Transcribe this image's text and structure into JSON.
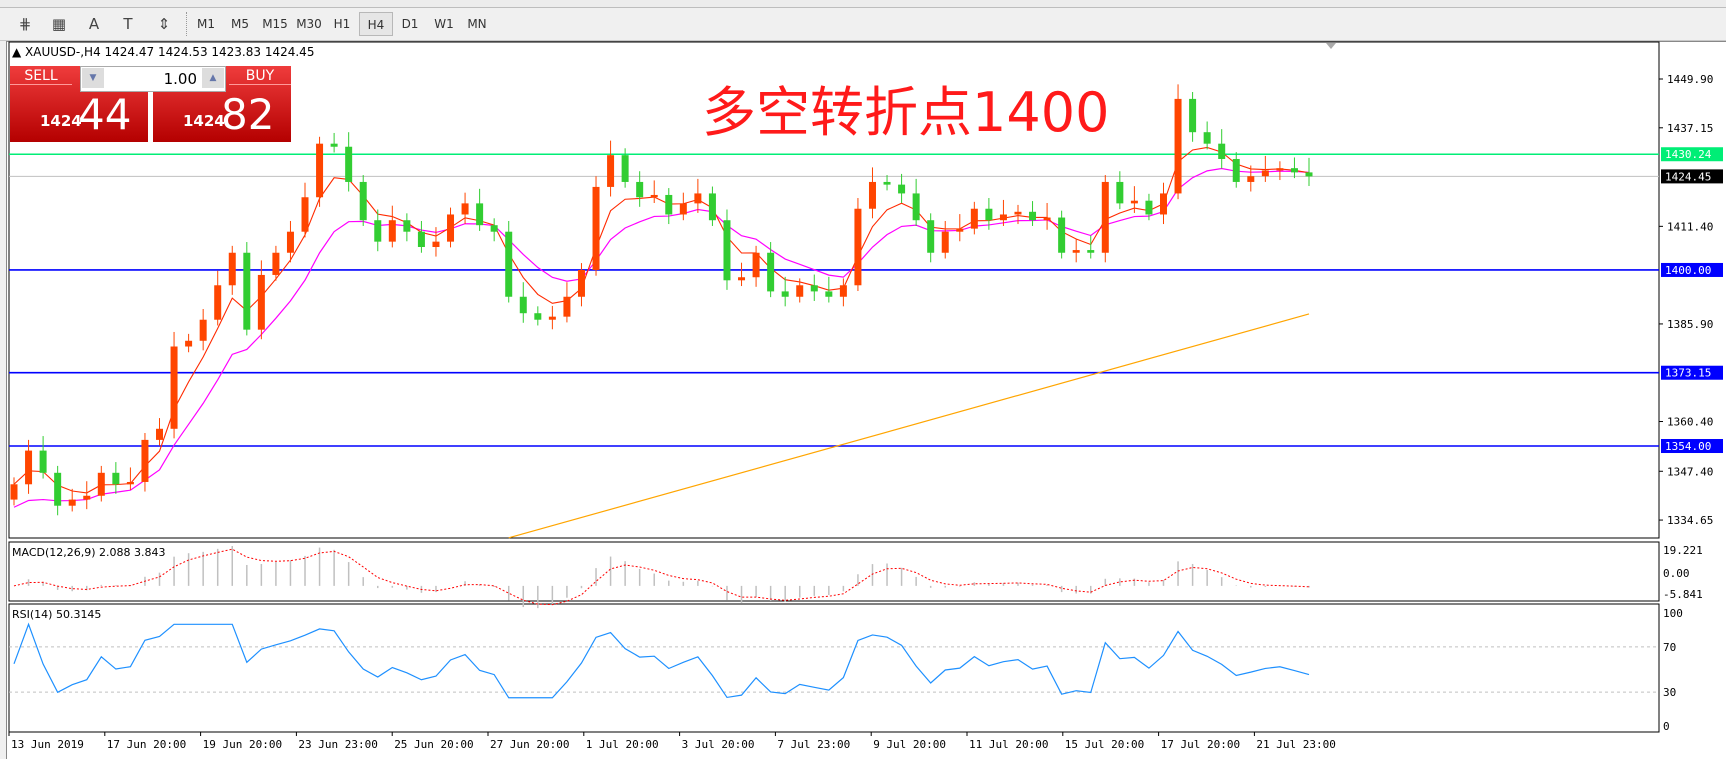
{
  "toolbar": {
    "icons": [
      "fibonacci-expansion-icon",
      "fibonacci-fan-icon",
      "text-icon",
      "text-label-icon",
      "arrows-icon"
    ],
    "icon_glyphs": [
      "⋕",
      "▦",
      "A",
      "T",
      "⇕"
    ],
    "timeframes": [
      "M1",
      "M5",
      "M15",
      "M30",
      "H1",
      "H4",
      "D1",
      "W1",
      "MN"
    ],
    "selected_timeframe": "H4"
  },
  "chart": {
    "info": "XAUUSD-,H4  1424.47 1424.53 1423.83 1424.45",
    "title_annotation": "多空转折点1400"
  },
  "trade_panel": {
    "sell_label": "SELL",
    "buy_label": "BUY",
    "lot": "1.00",
    "sell_small": "1424",
    "sell_big": "44",
    "buy_small": "1424",
    "buy_big": "82",
    "button_color": "#d01c1c"
  },
  "chart_data": {
    "type": "candlestick",
    "symbol": "XAUUSD-",
    "timeframe": "H4",
    "ylim": [
      1330,
      1458
    ],
    "price_ticks": [
      "1449.90",
      "1437.15",
      "1411.40",
      "1385.90",
      "1360.40",
      "1347.40",
      "1334.65"
    ],
    "x_tick_labels": [
      "13 Jun 2019",
      "17 Jun 20:00",
      "19 Jun 20:00",
      "23 Jun 23:00",
      "25 Jun 20:00",
      "27 Jun 20:00",
      "1 Jul 20:00",
      "3 Jul 20:00",
      "7 Jul 23:00",
      "9 Jul 20:00",
      "11 Jul 20:00",
      "15 Jul 20:00",
      "17 Jul 20:00",
      "21 Jul 23:00"
    ],
    "closes": [
      1344,
      1352.8,
      1347,
      1338.4,
      1340,
      1341,
      1347,
      1344,
      1344.6,
      1355.6,
      1358.5,
      1380,
      1381.5,
      1387,
      1396,
      1404.5,
      1384.4,
      1398.7,
      1404.5,
      1410,
      1419,
      1433,
      1432.2,
      1423,
      1413,
      1407.4,
      1413,
      1410,
      1406,
      1407.4,
      1414.5,
      1417.4,
      1411.7,
      1410,
      1393,
      1388.7,
      1387,
      1387.8,
      1393,
      1400,
      1421.7,
      1430,
      1423,
      1419,
      1419.6,
      1414.5,
      1417.4,
      1420,
      1413,
      1397.3,
      1398.1,
      1404.5,
      1394.4,
      1393,
      1396,
      1394.4,
      1393,
      1396,
      1416,
      1423,
      1422.3,
      1420,
      1413,
      1404.5,
      1410,
      1410.8,
      1416,
      1413,
      1414.5,
      1415.2,
      1413,
      1413.7,
      1404.5,
      1405.2,
      1404.5,
      1423,
      1417.4,
      1418.1,
      1414.5,
      1420,
      1444.7,
      1436,
      1433,
      1429,
      1423,
      1424.5,
      1426,
      1426.6,
      1425.5,
      1424.45
    ],
    "first_open": 1340,
    "bull_color": "#ff4500",
    "bear_color": "#32cd32",
    "slow_ma": {
      "color": "#ffa500",
      "points": [
        [
          34,
          1330
        ],
        [
          89,
          1388.5
        ]
      ]
    },
    "fast_ma_color": "#ff2a00",
    "mid_ma_color": "#ff00ff",
    "horizontal_lines": [
      {
        "price": 1430.24,
        "label": "1430.24",
        "color": "#00ee76"
      },
      {
        "price": 1424.45,
        "label": "1424.45",
        "color": "#c0c0c0",
        "label_bg": "#000000"
      },
      {
        "price": 1400.0,
        "label": "1400.00",
        "color": "#0000ff"
      },
      {
        "price": 1373.15,
        "label": "1373.15",
        "color": "#0000ff"
      },
      {
        "price": 1354.0,
        "label": "1354.00",
        "color": "#0000ff"
      }
    ],
    "macd": {
      "label": "MACD(12,26,9) 2.088 3.843",
      "ticks": [
        "19.221",
        "0.00",
        "-5.841"
      ],
      "signal_color": "#ff0000",
      "hist_color": "#c0c0c0"
    },
    "rsi": {
      "label": "RSI(14) 50.3145",
      "ticks": [
        "100",
        "70",
        "30",
        "0"
      ],
      "levels": [
        70,
        30
      ],
      "color": "#1e90ff"
    }
  }
}
